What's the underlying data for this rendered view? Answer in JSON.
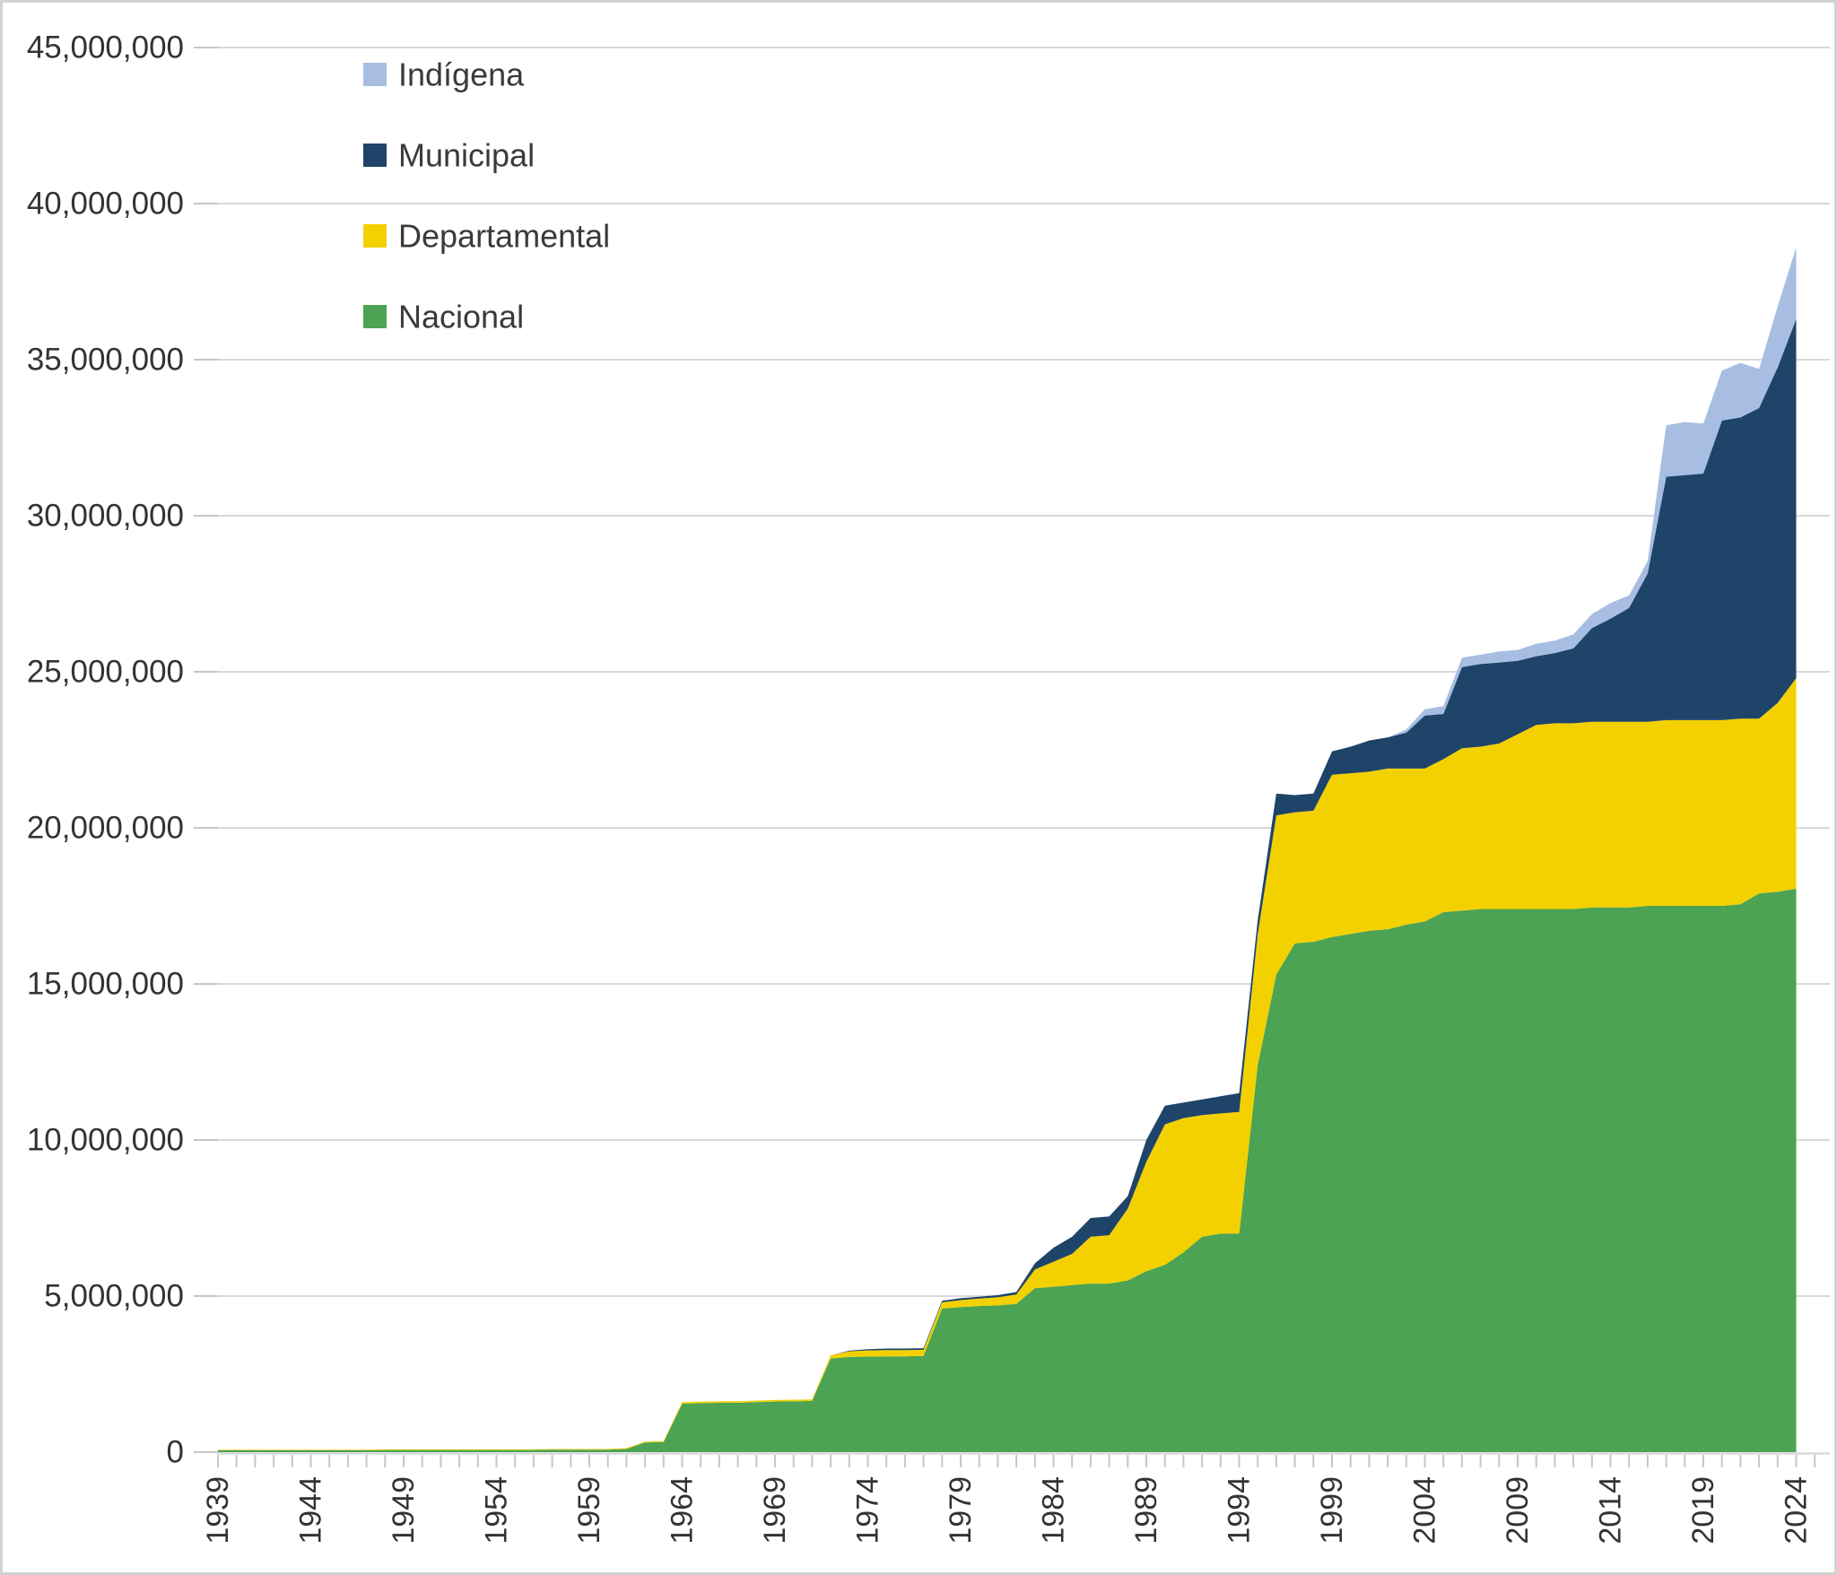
{
  "chart_data": {
    "type": "area",
    "stacked": true,
    "title": "",
    "values_unit": "millions",
    "columns": [
      "year",
      "Nacional",
      "Departamental",
      "Municipal",
      "Indígena"
    ],
    "rows": [
      [
        1939,
        0.06,
        0.02,
        0,
        0
      ],
      [
        1940,
        0.06,
        0.02,
        0,
        0
      ],
      [
        1941,
        0.06,
        0.02,
        0,
        0
      ],
      [
        1942,
        0.06,
        0.02,
        0,
        0
      ],
      [
        1943,
        0.06,
        0.02,
        0,
        0
      ],
      [
        1944,
        0.06,
        0.02,
        0,
        0
      ],
      [
        1945,
        0.06,
        0.02,
        0,
        0
      ],
      [
        1946,
        0.06,
        0.02,
        0,
        0
      ],
      [
        1947,
        0.06,
        0.02,
        0,
        0
      ],
      [
        1948,
        0.07,
        0.02,
        0,
        0
      ],
      [
        1949,
        0.07,
        0.02,
        0,
        0
      ],
      [
        1950,
        0.07,
        0.02,
        0,
        0
      ],
      [
        1951,
        0.07,
        0.02,
        0,
        0
      ],
      [
        1952,
        0.07,
        0.02,
        0,
        0
      ],
      [
        1953,
        0.07,
        0.02,
        0,
        0
      ],
      [
        1954,
        0.07,
        0.02,
        0,
        0
      ],
      [
        1955,
        0.07,
        0.02,
        0,
        0
      ],
      [
        1956,
        0.07,
        0.02,
        0,
        0
      ],
      [
        1957,
        0.08,
        0.02,
        0,
        0
      ],
      [
        1958,
        0.08,
        0.02,
        0,
        0
      ],
      [
        1959,
        0.08,
        0.02,
        0,
        0
      ],
      [
        1960,
        0.08,
        0.02,
        0,
        0
      ],
      [
        1961,
        0.1,
        0.03,
        0,
        0
      ],
      [
        1962,
        0.31,
        0.03,
        0,
        0
      ],
      [
        1963,
        0.32,
        0.03,
        0,
        0
      ],
      [
        1964,
        1.55,
        0.05,
        0,
        0
      ],
      [
        1965,
        1.57,
        0.05,
        0,
        0
      ],
      [
        1966,
        1.58,
        0.05,
        0,
        0
      ],
      [
        1967,
        1.58,
        0.05,
        0,
        0
      ],
      [
        1968,
        1.6,
        0.05,
        0,
        0
      ],
      [
        1969,
        1.62,
        0.05,
        0,
        0
      ],
      [
        1970,
        1.63,
        0.05,
        0,
        0
      ],
      [
        1971,
        1.64,
        0.05,
        0,
        0
      ],
      [
        1972,
        3.0,
        0.1,
        0.0,
        0
      ],
      [
        1973,
        3.05,
        0.18,
        0.02,
        0
      ],
      [
        1974,
        3.06,
        0.2,
        0.04,
        0
      ],
      [
        1975,
        3.07,
        0.2,
        0.05,
        0
      ],
      [
        1976,
        3.07,
        0.2,
        0.05,
        0
      ],
      [
        1977,
        3.08,
        0.2,
        0.05,
        0
      ],
      [
        1978,
        4.6,
        0.2,
        0.05,
        0
      ],
      [
        1979,
        4.65,
        0.22,
        0.06,
        0
      ],
      [
        1980,
        4.68,
        0.24,
        0.06,
        0
      ],
      [
        1981,
        4.7,
        0.26,
        0.07,
        0
      ],
      [
        1982,
        4.75,
        0.3,
        0.08,
        0
      ],
      [
        1983,
        5.25,
        0.6,
        0.2,
        0
      ],
      [
        1984,
        5.3,
        0.8,
        0.45,
        0
      ],
      [
        1985,
        5.35,
        1.0,
        0.55,
        0
      ],
      [
        1986,
        5.4,
        1.5,
        0.6,
        0
      ],
      [
        1987,
        5.4,
        1.55,
        0.6,
        0
      ],
      [
        1988,
        5.5,
        2.3,
        0.4,
        0
      ],
      [
        1989,
        5.8,
        3.5,
        0.7,
        0
      ],
      [
        1990,
        6.0,
        4.5,
        0.6,
        0
      ],
      [
        1991,
        6.4,
        4.3,
        0.5,
        0
      ],
      [
        1992,
        6.9,
        3.9,
        0.5,
        0
      ],
      [
        1993,
        7.0,
        3.85,
        0.55,
        0
      ],
      [
        1994,
        7.0,
        3.9,
        0.6,
        0
      ],
      [
        1995,
        12.4,
        4.2,
        0.45,
        0
      ],
      [
        1996,
        15.3,
        5.1,
        0.7,
        0
      ],
      [
        1997,
        16.3,
        4.2,
        0.55,
        0
      ],
      [
        1998,
        16.35,
        4.2,
        0.55,
        0
      ],
      [
        1999,
        16.5,
        5.2,
        0.75,
        0
      ],
      [
        2000,
        16.6,
        5.15,
        0.85,
        0
      ],
      [
        2001,
        16.7,
        5.1,
        1.0,
        0
      ],
      [
        2002,
        16.75,
        5.15,
        1.0,
        0
      ],
      [
        2003,
        16.9,
        5.0,
        1.15,
        0.1
      ],
      [
        2004,
        17.0,
        4.9,
        1.7,
        0.2
      ],
      [
        2005,
        17.3,
        4.9,
        1.45,
        0.25
      ],
      [
        2006,
        17.35,
        5.2,
        2.6,
        0.3
      ],
      [
        2007,
        17.4,
        5.2,
        2.65,
        0.3
      ],
      [
        2008,
        17.4,
        5.3,
        2.6,
        0.35
      ],
      [
        2009,
        17.4,
        5.6,
        2.35,
        0.35
      ],
      [
        2010,
        17.4,
        5.9,
        2.2,
        0.4
      ],
      [
        2011,
        17.4,
        5.95,
        2.25,
        0.4
      ],
      [
        2012,
        17.4,
        5.95,
        2.4,
        0.45
      ],
      [
        2013,
        17.45,
        5.95,
        3.0,
        0.45
      ],
      [
        2014,
        17.45,
        5.95,
        3.3,
        0.5
      ],
      [
        2015,
        17.45,
        5.95,
        3.65,
        0.4
      ],
      [
        2016,
        17.5,
        5.9,
        4.75,
        0.4
      ],
      [
        2017,
        17.5,
        5.95,
        7.8,
        1.65
      ],
      [
        2018,
        17.5,
        5.95,
        7.85,
        1.7
      ],
      [
        2019,
        17.5,
        5.95,
        7.9,
        1.6
      ],
      [
        2020,
        17.5,
        5.95,
        9.6,
        1.6
      ],
      [
        2021,
        17.55,
        5.95,
        9.65,
        1.75
      ],
      [
        2022,
        17.9,
        5.6,
        9.95,
        1.25
      ],
      [
        2023,
        17.95,
        6.05,
        10.75,
        1.95
      ],
      [
        2024,
        18.05,
        6.75,
        11.5,
        2.3
      ]
    ],
    "series_meta": [
      {
        "key": "Nacional",
        "label": "Nacional",
        "color": "#4BA353"
      },
      {
        "key": "Departamental",
        "label": "Departamental",
        "color": "#F3D100"
      },
      {
        "key": "Municipal",
        "label": "Municipal",
        "color": "#1F4469"
      },
      {
        "key": "Indígena",
        "label": "Indígena",
        "color": "#A7BEE2"
      }
    ],
    "legend": {
      "position": "top-left-inside",
      "items": [
        "Indígena",
        "Municipal",
        "Departamental",
        "Nacional"
      ]
    },
    "x_axis": {
      "range_years": [
        1939,
        2025
      ],
      "tick_every_years": 1,
      "labeled_years": [
        1939,
        1944,
        1949,
        1954,
        1959,
        1964,
        1969,
        1974,
        1979,
        1984,
        1989,
        1994,
        1999,
        2004,
        2009,
        2014,
        2019,
        2024
      ],
      "label_rotation_degrees": -90
    },
    "y_axis": {
      "min": 0,
      "max": 45000000,
      "gridlines": true,
      "ticks": [
        {
          "value_millions": 0,
          "label": "0"
        },
        {
          "value_millions": 5,
          "label": "5,000,000"
        },
        {
          "value_millions": 10,
          "label": "10,000,000"
        },
        {
          "value_millions": 15,
          "label": "15,000,000"
        },
        {
          "value_millions": 20,
          "label": "20,000,000"
        },
        {
          "value_millions": 25,
          "label": "25,000,000"
        },
        {
          "value_millions": 30,
          "label": "30,000,000"
        },
        {
          "value_millions": 35,
          "label": "35,000,000"
        },
        {
          "value_millions": 40,
          "label": "40,000,000"
        },
        {
          "value_millions": 45,
          "label": "45,000,000"
        }
      ]
    },
    "layout_hints": {
      "background": "#FFFFFF",
      "gridline_color": "#D9D9D9",
      "axis_line_color": "#D9D9D9",
      "tick_color": "#C6C6C6",
      "text_color": "#333333",
      "outer_border_color": "#D2D2D2"
    }
  }
}
